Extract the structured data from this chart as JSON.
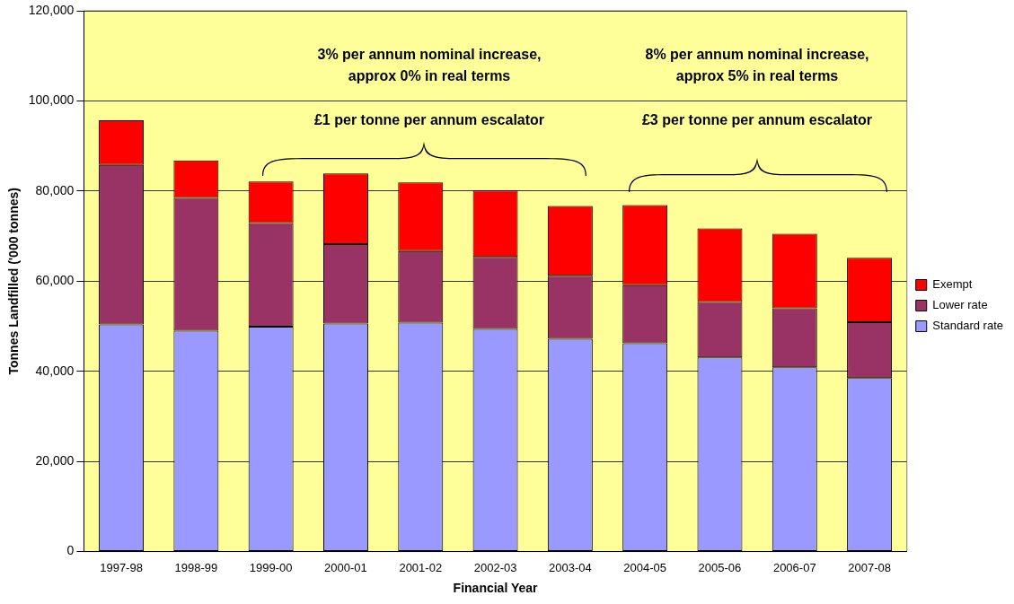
{
  "chart_data": {
    "type": "bar",
    "stacked": true,
    "categories": [
      "1997-98",
      "1998-99",
      "1999-00",
      "2000-01",
      "2001-02",
      "2002-03",
      "2003-04",
      "2004-05",
      "2005-06",
      "2006-07",
      "2007-08"
    ],
    "series": [
      {
        "name": "Standard rate",
        "color": "#9999ff",
        "values": [
          50400,
          49000,
          49900,
          50600,
          50800,
          49400,
          47200,
          46200,
          43100,
          40900,
          38500
        ]
      },
      {
        "name": "Lower rate",
        "color": "#993366",
        "values": [
          35400,
          29500,
          23000,
          17600,
          15900,
          16000,
          14000,
          12900,
          12300,
          13100,
          12400
        ]
      },
      {
        "name": "Exempt",
        "color": "#ff0000",
        "values": [
          9900,
          8300,
          9200,
          15700,
          15200,
          14700,
          15500,
          17800,
          16300,
          16500,
          14300
        ]
      }
    ],
    "xlabel": "Financial Year",
    "ylabel": "Tonnes Landfilled ('000 tonnes)",
    "ylim": [
      0,
      120000
    ],
    "yticks": [
      {
        "value": 0,
        "label": "0"
      },
      {
        "value": 20000,
        "label": "20,000"
      },
      {
        "value": 40000,
        "label": "40,000"
      },
      {
        "value": 60000,
        "label": "60,000"
      },
      {
        "value": 80000,
        "label": "80,000"
      },
      {
        "value": 100000,
        "label": "100,000"
      },
      {
        "value": 120000,
        "label": "120,000"
      }
    ],
    "grid": "y",
    "legend": "right",
    "annotations": [
      "3% per annum nominal increase,\napprox 0% in real terms",
      "£1 per tonne per annum escalator",
      "8% per annum nominal increase,\napprox 5% in real terms",
      "£3 per tonne per annum escalator"
    ]
  }
}
